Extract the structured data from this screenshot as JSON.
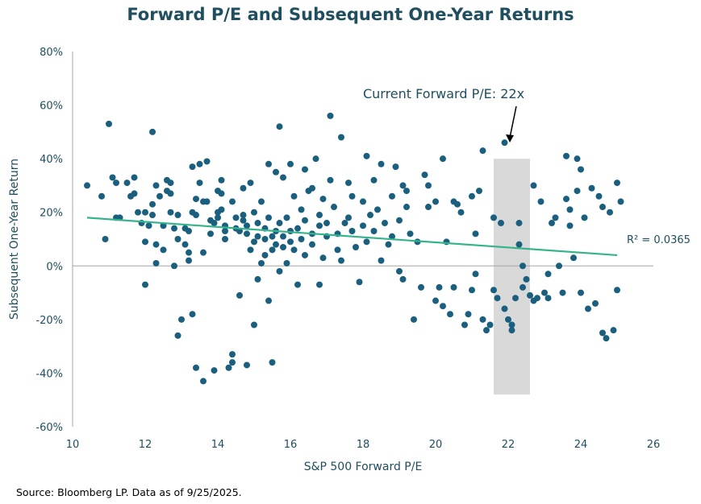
{
  "source_note": "Source: Bloomberg LP. Data as of 9/25/2025.",
  "colors": {
    "point": "#1b5f7e",
    "trend": "#35b38a",
    "highlight": "#d9d9d9",
    "axis": "#a6a6a6",
    "text": "#1f4e5f"
  },
  "chart_data": {
    "type": "scatter",
    "title": "Forward P/E and Subsequent One-Year Returns",
    "xlabel": "S&P 500 Forward P/E",
    "ylabel": "Subsequent One-Year Return",
    "xlim": [
      10,
      26
    ],
    "ylim": [
      -60,
      80
    ],
    "x_ticks": [
      10,
      12,
      14,
      16,
      18,
      20,
      22,
      24,
      26
    ],
    "y_ticks": [
      -60,
      -40,
      -20,
      0,
      20,
      40,
      60,
      80
    ],
    "y_tick_labels": [
      "-60%",
      "-40%",
      "-20%",
      "0%",
      "20%",
      "40%",
      "60%",
      "80%"
    ],
    "grid": false,
    "annotation": {
      "text": "Current Forward P/E: 22x",
      "x": 22,
      "y": 40
    },
    "highlight_band": {
      "x": [
        21.6,
        22.6
      ],
      "y": [
        -48,
        40
      ]
    },
    "trendline": {
      "x": [
        10.4,
        25
      ],
      "y": [
        18,
        4
      ],
      "label": "R² = 0.0365"
    },
    "points": [
      [
        10.4,
        30
      ],
      [
        10.8,
        26
      ],
      [
        10.9,
        10
      ],
      [
        11.0,
        53
      ],
      [
        11.1,
        33
      ],
      [
        11.2,
        31
      ],
      [
        11.2,
        18
      ],
      [
        11.3,
        18
      ],
      [
        11.5,
        31
      ],
      [
        11.6,
        26
      ],
      [
        11.7,
        27
      ],
      [
        11.7,
        33
      ],
      [
        11.8,
        20
      ],
      [
        11.9,
        16
      ],
      [
        12.0,
        9
      ],
      [
        12.0,
        20
      ],
      [
        12.0,
        -7
      ],
      [
        12.1,
        15
      ],
      [
        12.2,
        50
      ],
      [
        12.2,
        23
      ],
      [
        12.2,
        19
      ],
      [
        12.3,
        30
      ],
      [
        12.3,
        8
      ],
      [
        12.3,
        1
      ],
      [
        12.4,
        26
      ],
      [
        12.5,
        15
      ],
      [
        12.5,
        6
      ],
      [
        12.6,
        28
      ],
      [
        12.6,
        32
      ],
      [
        12.7,
        31
      ],
      [
        12.7,
        27
      ],
      [
        12.7,
        20
      ],
      [
        12.8,
        14
      ],
      [
        12.8,
        0
      ],
      [
        12.9,
        -26
      ],
      [
        12.9,
        10
      ],
      [
        12.9,
        19
      ],
      [
        13.0,
        -20
      ],
      [
        13.1,
        14
      ],
      [
        13.1,
        8
      ],
      [
        13.2,
        5
      ],
      [
        13.2,
        2
      ],
      [
        13.2,
        13
      ],
      [
        13.3,
        -18
      ],
      [
        13.3,
        20
      ],
      [
        13.3,
        37
      ],
      [
        13.4,
        -38
      ],
      [
        13.4,
        25
      ],
      [
        13.4,
        19
      ],
      [
        13.5,
        38
      ],
      [
        13.5,
        31
      ],
      [
        13.6,
        -43
      ],
      [
        13.6,
        5
      ],
      [
        13.6,
        24
      ],
      [
        13.7,
        39
      ],
      [
        13.7,
        24
      ],
      [
        13.8,
        17
      ],
      [
        13.8,
        12
      ],
      [
        13.9,
        16
      ],
      [
        13.9,
        -39
      ],
      [
        14.0,
        28
      ],
      [
        14.0,
        20
      ],
      [
        14.0,
        18
      ],
      [
        14.1,
        32
      ],
      [
        14.1,
        27
      ],
      [
        14.1,
        21
      ],
      [
        14.2,
        15
      ],
      [
        14.2,
        13
      ],
      [
        14.2,
        10
      ],
      [
        14.3,
        -38
      ],
      [
        14.4,
        -36
      ],
      [
        14.4,
        -33
      ],
      [
        14.4,
        24
      ],
      [
        14.5,
        18
      ],
      [
        14.5,
        14
      ],
      [
        14.6,
        13
      ],
      [
        14.6,
        -11
      ],
      [
        14.7,
        19
      ],
      [
        14.7,
        29
      ],
      [
        14.7,
        17
      ],
      [
        14.8,
        -37
      ],
      [
        14.8,
        15
      ],
      [
        14.8,
        12
      ],
      [
        14.9,
        6
      ],
      [
        14.9,
        31
      ],
      [
        15.0,
        9
      ],
      [
        15.0,
        20
      ],
      [
        15.0,
        -22
      ],
      [
        15.1,
        -5
      ],
      [
        15.1,
        16
      ],
      [
        15.1,
        11
      ],
      [
        15.2,
        1
      ],
      [
        15.2,
        24
      ],
      [
        15.3,
        14
      ],
      [
        15.3,
        10
      ],
      [
        15.3,
        4
      ],
      [
        15.4,
        38
      ],
      [
        15.4,
        18
      ],
      [
        15.4,
        -13
      ],
      [
        15.5,
        11
      ],
      [
        15.5,
        6
      ],
      [
        15.5,
        -36
      ],
      [
        15.6,
        35
      ],
      [
        15.6,
        13
      ],
      [
        15.6,
        8
      ],
      [
        15.7,
        52
      ],
      [
        15.7,
        -2
      ],
      [
        15.7,
        16
      ],
      [
        15.8,
        33
      ],
      [
        15.8,
        11
      ],
      [
        15.8,
        7
      ],
      [
        15.9,
        18
      ],
      [
        15.9,
        1
      ],
      [
        16.0,
        13
      ],
      [
        16.0,
        9
      ],
      [
        16.0,
        38
      ],
      [
        16.1,
        26
      ],
      [
        16.1,
        6
      ],
      [
        16.2,
        14
      ],
      [
        16.2,
        -7
      ],
      [
        16.3,
        21
      ],
      [
        16.3,
        10
      ],
      [
        16.4,
        36
      ],
      [
        16.4,
        4
      ],
      [
        16.4,
        17
      ],
      [
        16.5,
        28
      ],
      [
        16.6,
        12
      ],
      [
        16.6,
        8
      ],
      [
        16.6,
        29
      ],
      [
        16.7,
        40
      ],
      [
        16.8,
        19
      ],
      [
        16.8,
        -7
      ],
      [
        16.8,
        15
      ],
      [
        16.9,
        25
      ],
      [
        16.9,
        3
      ],
      [
        17.0,
        16
      ],
      [
        17.0,
        11
      ],
      [
        17.1,
        32
      ],
      [
        17.1,
        56
      ],
      [
        17.2,
        22
      ],
      [
        17.3,
        12
      ],
      [
        17.3,
        6
      ],
      [
        17.4,
        48
      ],
      [
        17.4,
        2
      ],
      [
        17.5,
        16
      ],
      [
        17.6,
        31
      ],
      [
        17.6,
        18
      ],
      [
        17.7,
        26
      ],
      [
        17.7,
        13
      ],
      [
        17.8,
        7
      ],
      [
        17.9,
        -6
      ],
      [
        18.0,
        24
      ],
      [
        18.0,
        15
      ],
      [
        18.1,
        41
      ],
      [
        18.1,
        9
      ],
      [
        18.2,
        19
      ],
      [
        18.3,
        32
      ],
      [
        18.3,
        13
      ],
      [
        18.4,
        21
      ],
      [
        18.5,
        2
      ],
      [
        18.5,
        38
      ],
      [
        18.6,
        16
      ],
      [
        18.7,
        8
      ],
      [
        18.8,
        26
      ],
      [
        18.8,
        11
      ],
      [
        18.9,
        37
      ],
      [
        19.0,
        17
      ],
      [
        19.0,
        -2
      ],
      [
        19.1,
        -5
      ],
      [
        19.1,
        30
      ],
      [
        19.2,
        28
      ],
      [
        19.2,
        22
      ],
      [
        19.3,
        12
      ],
      [
        19.4,
        -20
      ],
      [
        19.5,
        9
      ],
      [
        19.6,
        -8
      ],
      [
        19.7,
        34
      ],
      [
        19.8,
        22
      ],
      [
        19.8,
        30
      ],
      [
        20.0,
        24
      ],
      [
        20.0,
        -13
      ],
      [
        20.1,
        -8
      ],
      [
        20.2,
        40
      ],
      [
        20.2,
        -15
      ],
      [
        20.3,
        9
      ],
      [
        20.4,
        -18
      ],
      [
        20.5,
        24
      ],
      [
        20.5,
        -8
      ],
      [
        20.6,
        23
      ],
      [
        20.7,
        20
      ],
      [
        20.8,
        -22
      ],
      [
        20.9,
        -18
      ],
      [
        21.0,
        26
      ],
      [
        21.0,
        -9
      ],
      [
        21.1,
        12
      ],
      [
        21.1,
        -3
      ],
      [
        21.2,
        28
      ],
      [
        21.3,
        -20
      ],
      [
        21.3,
        43
      ],
      [
        21.4,
        -24
      ],
      [
        21.5,
        -22
      ],
      [
        21.6,
        18
      ],
      [
        21.6,
        -9
      ],
      [
        21.7,
        -12
      ],
      [
        21.8,
        16
      ],
      [
        21.9,
        -16
      ],
      [
        21.9,
        46
      ],
      [
        22.0,
        -20
      ],
      [
        22.1,
        -24
      ],
      [
        22.1,
        -22
      ],
      [
        22.2,
        -12
      ],
      [
        22.3,
        16
      ],
      [
        22.3,
        8
      ],
      [
        22.4,
        -8
      ],
      [
        22.4,
        0
      ],
      [
        22.5,
        -5
      ],
      [
        22.6,
        -11
      ],
      [
        22.7,
        -13
      ],
      [
        22.7,
        30
      ],
      [
        22.8,
        -12
      ],
      [
        22.9,
        24
      ],
      [
        23.0,
        -10
      ],
      [
        23.1,
        -3
      ],
      [
        23.1,
        -12
      ],
      [
        23.2,
        16
      ],
      [
        23.3,
        18
      ],
      [
        23.4,
        0
      ],
      [
        23.5,
        -10
      ],
      [
        23.6,
        25
      ],
      [
        23.6,
        41
      ],
      [
        23.7,
        21
      ],
      [
        23.7,
        15
      ],
      [
        23.8,
        3
      ],
      [
        23.9,
        28
      ],
      [
        23.9,
        40
      ],
      [
        24.0,
        36
      ],
      [
        24.0,
        -10
      ],
      [
        24.1,
        18
      ],
      [
        24.2,
        -16
      ],
      [
        24.3,
        29
      ],
      [
        24.4,
        -14
      ],
      [
        24.5,
        26
      ],
      [
        24.6,
        22
      ],
      [
        24.6,
        -25
      ],
      [
        24.7,
        -27
      ],
      [
        24.8,
        20
      ],
      [
        24.9,
        -24
      ],
      [
        25.0,
        -9
      ],
      [
        25.0,
        31
      ],
      [
        25.1,
        24
      ]
    ]
  }
}
